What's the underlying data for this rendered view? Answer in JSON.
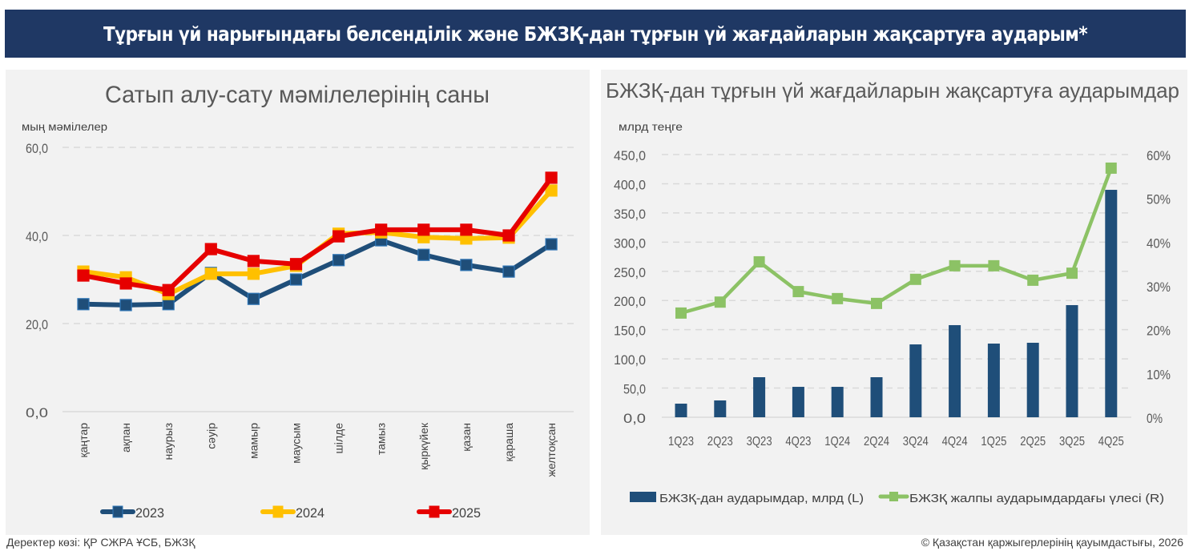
{
  "header": {
    "title": "Тұрғын үй нарығындағы белсенділік және БЖЗҚ-дан тұрғын үй жағдайларын жақсартуға аударым*"
  },
  "footer": {
    "source": "Деректер көзі: ҚР СЖРА ҰСБ, БЖЗҚ",
    "copyright": "© Қазақстан қаржыгерлерінің қауымдастығы, 2026"
  },
  "colors": {
    "banner": "#1f3864",
    "panel": "#f2f2f2",
    "s2023": "#1f4e79",
    "s2024": "#ffc000",
    "s2025": "#e60000",
    "bar": "#1f4e79",
    "share": "#8cc265"
  },
  "chart_data": [
    {
      "type": "line",
      "title": "Сатып алу-сату мәмілелерінің саны",
      "ylabel": "мың мәмілелер",
      "xlabel": "",
      "ylim": [
        0,
        60
      ],
      "yticks": [
        "0,0",
        "20,0",
        "40,0",
        "60,0"
      ],
      "grid": true,
      "legend_position": "bottom",
      "categories": [
        "қаңтар",
        "ақпан",
        "наурыз",
        "сәуір",
        "мамыр",
        "маусым",
        "шілде",
        "тамыз",
        "қыркүйек",
        "қазан",
        "қараша",
        "желтоқсан"
      ],
      "series": [
        {
          "name": "2023",
          "values": [
            24.4,
            24.2,
            24.4,
            31.5,
            25.6,
            30.0,
            34.4,
            38.9,
            35.6,
            33.3,
            31.8,
            38.0
          ]
        },
        {
          "name": "2024",
          "values": [
            31.8,
            30.5,
            26.7,
            31.3,
            31.3,
            33.1,
            40.4,
            40.7,
            39.6,
            39.3,
            39.5,
            50.2
          ]
        },
        {
          "name": "2025",
          "values": [
            30.9,
            29.1,
            27.6,
            36.9,
            34.2,
            33.5,
            39.8,
            41.3,
            41.3,
            41.3,
            40.0,
            53.1
          ]
        }
      ]
    },
    {
      "type": "bar",
      "title": "БЖЗҚ-дан тұрғын үй жағдайларын жақсартуға аударымдар",
      "ylabel": "млрд теңге",
      "xlabel": "",
      "ylim": [
        0,
        450
      ],
      "y2lim": [
        0,
        60
      ],
      "yticks": [
        "0,0",
        "50,0",
        "100,0",
        "150,0",
        "200,0",
        "250,0",
        "300,0",
        "350,0",
        "400,0",
        "450,0"
      ],
      "y2ticks": [
        "0%",
        "10%",
        "20%",
        "30%",
        "40%",
        "50%",
        "60%"
      ],
      "grid": true,
      "legend_position": "bottom",
      "categories": [
        "1Q23",
        "2Q23",
        "3Q23",
        "4Q23",
        "1Q24",
        "2Q24",
        "3Q24",
        "4Q24",
        "1Q25",
        "2Q25",
        "3Q25",
        "4Q25"
      ],
      "series": [
        {
          "name": "БЖЗҚ-дан аударымдар, млрд (L)",
          "type": "bar",
          "axis": "left",
          "values": [
            23.3,
            28.8,
            68.6,
            52.1,
            52.1,
            68.6,
            124.8,
            157.8,
            126.2,
            127.6,
            192.1,
            389.6
          ]
        },
        {
          "name": "БЖЗҚ жалпы аударымдардағы үлесі (R)",
          "type": "line",
          "axis": "right",
          "unit": "%",
          "values": [
            23.8,
            26.3,
            35.5,
            28.7,
            27.1,
            26.0,
            31.5,
            34.6,
            34.6,
            31.3,
            32.9,
            56.9
          ]
        }
      ]
    }
  ]
}
